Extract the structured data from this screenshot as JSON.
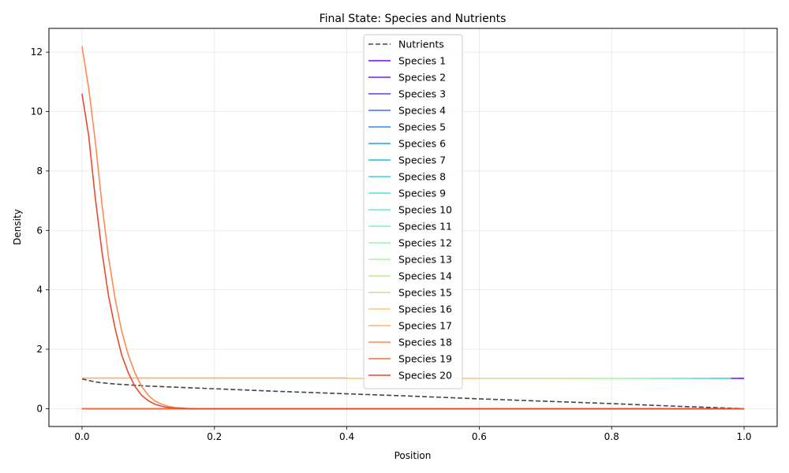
{
  "chart_data": {
    "type": "line",
    "title": "Final State: Species and Nutrients",
    "xlabel": "Position",
    "ylabel": "Density",
    "xlim": [
      -0.05,
      1.05
    ],
    "ylim": [
      -0.6,
      12.8
    ],
    "xticks": [
      0.0,
      0.2,
      0.4,
      0.6,
      0.8,
      1.0
    ],
    "xtick_labels": [
      "0.0",
      "0.2",
      "0.4",
      "0.6",
      "0.8",
      "1.0"
    ],
    "yticks": [
      0,
      2,
      4,
      6,
      8,
      10,
      12
    ],
    "ytick_labels": [
      "0",
      "2",
      "4",
      "6",
      "8",
      "10",
      "12"
    ],
    "grid": true,
    "legend_position": "top-center",
    "series": [
      {
        "name": "Nutrients",
        "color": "#444444",
        "dashed": true,
        "x": [
          0,
          0.01,
          0.02,
          0.03,
          0.04,
          0.05,
          0.1,
          0.2,
          0.3,
          0.4,
          0.5,
          0.6,
          0.7,
          0.8,
          0.9,
          1.0
        ],
        "y": [
          1.0,
          0.95,
          0.9,
          0.87,
          0.85,
          0.83,
          0.76,
          0.67,
          0.58,
          0.5,
          0.42,
          0.33,
          0.25,
          0.17,
          0.08,
          0.0
        ]
      },
      {
        "name": "Species 1",
        "color": "#7f00ff",
        "x": [
          0.99,
          1.0
        ],
        "y": [
          1.02,
          1.02
        ]
      },
      {
        "name": "Species 2",
        "color": "#6f1efe",
        "x": [
          0.98,
          0.99
        ],
        "y": [
          1.02,
          1.02
        ]
      },
      {
        "name": "Species 3",
        "color": "#5a3ffc",
        "x": [
          0.0,
          0.5,
          1.0
        ],
        "y": [
          0.0,
          0.0,
          0.0
        ]
      },
      {
        "name": "Species 4",
        "color": "#3f6ef5",
        "x": [
          0.0,
          0.5,
          1.0
        ],
        "y": [
          0.0,
          0.0,
          0.0
        ]
      },
      {
        "name": "Species 5",
        "color": "#2a8ded",
        "x": [
          0.0,
          0.5,
          1.0
        ],
        "y": [
          0.0,
          0.0,
          0.0
        ]
      },
      {
        "name": "Species 6",
        "color": "#13a8e3",
        "x": [
          0.0,
          0.5,
          1.0
        ],
        "y": [
          0.0,
          0.0,
          0.0
        ]
      },
      {
        "name": "Species 7",
        "color": "#1ec0e0",
        "x": [
          0.0,
          0.5,
          1.0
        ],
        "y": [
          0.0,
          0.0,
          0.0
        ]
      },
      {
        "name": "Species 8",
        "color": "#36d3d8",
        "x": [
          0.95,
          0.98
        ],
        "y": [
          1.02,
          1.02
        ]
      },
      {
        "name": "Species 9",
        "color": "#4ee0d4",
        "x": [
          0.92,
          0.95
        ],
        "y": [
          1.02,
          1.02
        ]
      },
      {
        "name": "Species 10",
        "color": "#65ecc9",
        "x": [
          0.89,
          0.92
        ],
        "y": [
          1.02,
          1.02
        ]
      },
      {
        "name": "Species 11",
        "color": "#7ef5bd",
        "x": [
          0.86,
          0.89
        ],
        "y": [
          1.02,
          1.02
        ]
      },
      {
        "name": "Species 12",
        "color": "#8ffaad",
        "x": [
          0.82,
          0.86
        ],
        "y": [
          1.02,
          1.02
        ]
      },
      {
        "name": "Species 13",
        "color": "#aaf59f",
        "x": [
          0.77,
          0.82
        ],
        "y": [
          1.02,
          1.02
        ]
      },
      {
        "name": "Species 14",
        "color": "#c4e98d",
        "x": [
          0.72,
          0.77
        ],
        "y": [
          1.02,
          1.02
        ]
      },
      {
        "name": "Species 15",
        "color": "#dad99c",
        "x": [
          0.6,
          0.72
        ],
        "y": [
          1.02,
          1.02
        ]
      },
      {
        "name": "Species 16",
        "color": "#fec57d",
        "x": [
          0.4,
          0.6
        ],
        "y": [
          1.02,
          1.02
        ]
      },
      {
        "name": "Species 17",
        "color": "#ffad6d",
        "x": [
          0.0,
          0.2,
          0.4
        ],
        "y": [
          1.03,
          1.03,
          1.03
        ]
      },
      {
        "name": "Species 18",
        "color": "#fe8a52",
        "x": [
          0.0,
          0.01,
          0.02,
          0.03,
          0.04,
          0.05,
          0.06,
          0.07,
          0.08,
          0.09,
          0.1,
          0.11,
          0.12,
          0.13,
          0.14,
          0.16,
          0.18,
          0.2,
          0.5,
          1.0
        ],
        "y": [
          12.2,
          10.8,
          9.0,
          6.9,
          5.1,
          3.7,
          2.6,
          1.8,
          1.2,
          0.75,
          0.45,
          0.26,
          0.15,
          0.08,
          0.04,
          0.01,
          0.0,
          0.0,
          0.0,
          0.0
        ]
      },
      {
        "name": "Species 19",
        "color": "#ee6c40",
        "x": [
          0.0,
          0.5,
          1.0
        ],
        "y": [
          0.0,
          0.0,
          0.0
        ]
      },
      {
        "name": "Species 20",
        "color": "#e84a30",
        "x": [
          0.0,
          0.01,
          0.02,
          0.03,
          0.04,
          0.05,
          0.06,
          0.07,
          0.08,
          0.09,
          0.1,
          0.11,
          0.12,
          0.13,
          0.14,
          0.16,
          0.18,
          0.2,
          0.5,
          1.0
        ],
        "y": [
          10.6,
          9.2,
          7.1,
          5.3,
          3.8,
          2.7,
          1.8,
          1.2,
          0.75,
          0.45,
          0.27,
          0.15,
          0.08,
          0.04,
          0.02,
          0.0,
          0.0,
          0.0,
          0.0,
          0.0
        ]
      }
    ]
  }
}
